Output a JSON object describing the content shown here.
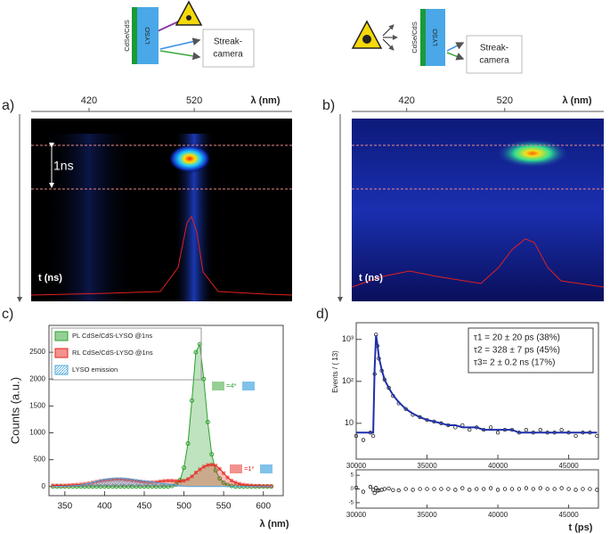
{
  "schematics": [
    {
      "sample": "CdSe/CdS",
      "scintillator": "LYSO",
      "detector": [
        "Streak-",
        "camera"
      ]
    },
    {
      "sample": "CdSe/CdS",
      "scintillator": "LYSO",
      "detector": [
        "Streak-",
        "camera"
      ]
    }
  ],
  "chart_data": [
    {
      "type": "streak",
      "panel": "a)",
      "xlabel": "λ (nm)",
      "ylabel": "t (ns)",
      "xlim": [
        365,
        613
      ],
      "xticks": [
        420,
        520
      ],
      "annotation": "1ns"
    },
    {
      "type": "streak",
      "panel": "b)",
      "xlabel": "λ (nm)",
      "ylabel": "t (ns)",
      "xlim": [
        364,
        621
      ],
      "xticks": [
        420,
        520
      ]
    },
    {
      "type": "line",
      "panel": "c)",
      "xlabel": "λ (nm)",
      "ylabel": "Counts (a.u.)",
      "x": [
        335,
        340,
        345,
        350,
        355,
        360,
        365,
        370,
        375,
        380,
        385,
        390,
        395,
        400,
        405,
        410,
        415,
        420,
        425,
        430,
        435,
        440,
        445,
        450,
        455,
        460,
        465,
        470,
        475,
        480,
        485,
        490,
        495,
        500,
        505,
        510,
        515,
        520,
        525,
        530,
        535,
        540,
        545,
        550,
        555,
        560,
        565,
        570,
        575,
        580,
        585,
        590,
        595,
        600,
        605,
        610
      ],
      "series": [
        {
          "name": "PL CdSe/CdS-LYSO @1ns",
          "color": "#2ca02c",
          "marker": "circle",
          "values": [
            0,
            0,
            0,
            0,
            0,
            0,
            0,
            0,
            0,
            0,
            0,
            0,
            0,
            0,
            0,
            0,
            0,
            0,
            0,
            0,
            0,
            0,
            0,
            0,
            0,
            0,
            0,
            0,
            0,
            0,
            10,
            40,
            120,
            350,
            800,
            1600,
            2500,
            2650,
            2000,
            1200,
            600,
            300,
            150,
            70,
            30,
            10,
            0,
            0,
            0,
            0,
            0,
            0,
            0,
            0,
            0,
            0
          ]
        },
        {
          "name": "RL CdSe/CdS-LYSO @1ns",
          "color": "#e8241c",
          "marker": "square",
          "values": [
            20,
            20,
            20,
            20,
            25,
            30,
            35,
            40,
            50,
            60,
            75,
            90,
            105,
            115,
            125,
            130,
            135,
            135,
            130,
            125,
            115,
            105,
            95,
            85,
            80,
            80,
            85,
            95,
            105,
            110,
            110,
            105,
            100,
            110,
            140,
            190,
            260,
            320,
            370,
            400,
            410,
            390,
            330,
            250,
            170,
            110,
            75,
            50,
            35,
            25,
            20,
            15,
            15,
            10,
            10,
            10
          ]
        },
        {
          "name": "LYSO emission",
          "color": "#4aa8e0",
          "values": [
            5,
            5,
            5,
            8,
            10,
            15,
            20,
            30,
            45,
            60,
            80,
            100,
            120,
            135,
            145,
            155,
            160,
            160,
            155,
            145,
            135,
            125,
            115,
            105,
            95,
            85,
            75,
            65,
            55,
            45,
            35,
            25,
            15,
            5,
            0,
            0,
            0,
            0,
            0,
            0,
            0,
            0,
            0,
            0,
            0,
            0,
            0,
            0,
            0,
            0,
            0,
            0,
            0,
            0,
            0,
            0
          ]
        }
      ],
      "xlim": [
        330,
        625
      ],
      "ylim": [
        -170,
        3000
      ],
      "xticks": [
        350,
        400,
        450,
        500,
        550,
        600
      ],
      "yticks": [
        0,
        500,
        1000,
        1500,
        2000,
        2500
      ],
      "annotations": [
        "=4*",
        "=1*"
      ]
    },
    {
      "type": "scatter",
      "panel": "d)",
      "ylabel": "Events / ( 13)",
      "log_y": true,
      "x": [
        30000,
        30500,
        31000,
        31200,
        31300,
        31400,
        31500,
        31600,
        31800,
        32000,
        32300,
        32600,
        33000,
        33500,
        34000,
        34500,
        35000,
        35500,
        36000,
        36500,
        37000,
        37500,
        38000,
        38500,
        39000,
        39500,
        40000,
        40500,
        41000,
        41500,
        42000,
        42500,
        43000,
        43500,
        44000,
        44500,
        45000,
        45500,
        46000,
        46500,
        47000
      ],
      "series": [
        {
          "color": "#000000",
          "style": "points",
          "values": [
            5,
            4,
            6,
            5,
            150,
            1300,
            700,
            350,
            180,
            110,
            70,
            45,
            30,
            22,
            16,
            14,
            12,
            11,
            10,
            9,
            8,
            9,
            7,
            8,
            7,
            8,
            6,
            7,
            7,
            6,
            7,
            6,
            7,
            6,
            6,
            7,
            6,
            5,
            6,
            6,
            5
          ]
        },
        {
          "color": "#1f2fa8",
          "style": "line",
          "values": [
            6,
            6,
            6,
            6,
            200,
            1250,
            750,
            380,
            190,
            110,
            70,
            47,
            32,
            22,
            17,
            14,
            12,
            11,
            10,
            9,
            9,
            8,
            8,
            8,
            7,
            7,
            7,
            7,
            7,
            6,
            6,
            6,
            6,
            6,
            6,
            6,
            6,
            6,
            6,
            6,
            6
          ]
        }
      ],
      "xlim": [
        30000,
        47100
      ],
      "ylim": [
        1.4,
        2500
      ],
      "xticks": [
        30000,
        35000,
        40000,
        45000
      ],
      "yticks": [
        10,
        {
          "value": 100,
          "label": "10²"
        },
        {
          "value": 1000,
          "label": "10³"
        }
      ],
      "fit_results": [
        "τ1 = 20 ± 20 ps (38%)",
        "τ2 = 328 ± 7 ps (45%)",
        "τ3= 2 ± 0.2 ns   (17%)"
      ]
    },
    {
      "type": "residual",
      "xlabel": "t (ps)",
      "x": [
        30000,
        30500,
        31000,
        31200,
        31300,
        31400,
        31500,
        31600,
        31800,
        32000,
        32300,
        32600,
        33000,
        33500,
        34000,
        34500,
        35000,
        35500,
        36000,
        36500,
        37000,
        37500,
        38000,
        38500,
        39000,
        39500,
        40000,
        40500,
        41000,
        41500,
        42000,
        42500,
        43000,
        43500,
        44000,
        44500,
        45000,
        45500,
        46000,
        46500,
        47000
      ],
      "values": [
        0.5,
        -1,
        0.8,
        -0.3,
        -1.5,
        0.4,
        -0.6,
        -0.5,
        -0.3,
        0,
        0.2,
        -0.4,
        -0.5,
        0,
        -0.3,
        0,
        0,
        0,
        0,
        0,
        -0.3,
        0.3,
        -0.3,
        0,
        0,
        0.3,
        -0.3,
        0,
        0,
        0,
        0.3,
        0,
        0.3,
        0,
        0,
        0.3,
        0,
        -0.3,
        0,
        0,
        -0.3
      ],
      "xlim": [
        30000,
        47100
      ],
      "ylim": [
        -7,
        7
      ],
      "yticks": [
        -5,
        0,
        5
      ],
      "xticks": [
        30000,
        35000,
        40000,
        45000
      ]
    }
  ]
}
